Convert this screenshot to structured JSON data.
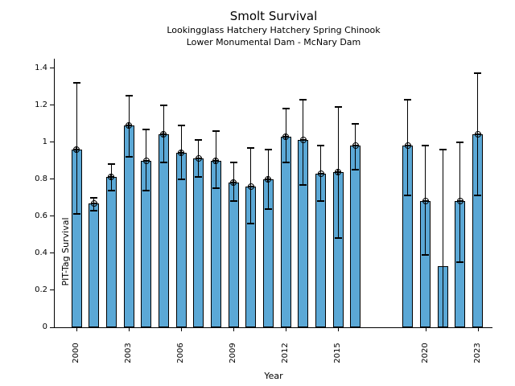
{
  "chart_data": {
    "type": "bar",
    "title": "Smolt Survival",
    "subtitle_line1": "Lookingglass Hatchery Hatchery Spring Chinook",
    "subtitle_line2": "Lower Monumental Dam - McNary Dam",
    "xlabel": "Year",
    "ylabel": "PIT-Tag Survival",
    "bar_color": "#5BA8D6",
    "bar_edge_color": "#000000",
    "errorbar_color": "#000000",
    "grid": false,
    "legend": false,
    "xlim": [
      1998.75,
      2023.85
    ],
    "ylim": [
      0,
      1.45
    ],
    "x_ticks": [
      2000,
      2003,
      2006,
      2009,
      2012,
      2015,
      2020,
      2023
    ],
    "x_tick_labels": [
      "2000",
      "2003",
      "2006",
      "2009",
      "2012",
      "2015",
      "2020",
      "2023"
    ],
    "y_ticks": [
      0,
      0.2,
      0.4,
      0.6,
      0.8,
      1,
      1.2,
      1.4
    ],
    "y_tick_labels": [
      "0",
      "0.2",
      "0.4",
      "0.6",
      "0.8",
      "1",
      "1.2",
      "1.4"
    ],
    "missing_years": [
      2017,
      2018
    ],
    "points": [
      {
        "year": 2000,
        "value": 0.96,
        "err_lo": 0.61,
        "err_hi": 1.32,
        "marker": true
      },
      {
        "year": 2001,
        "value": 0.67,
        "err_lo": 0.63,
        "err_hi": 0.7,
        "marker": true
      },
      {
        "year": 2002,
        "value": 0.81,
        "err_lo": 0.74,
        "err_hi": 0.88,
        "marker": true
      },
      {
        "year": 2003,
        "value": 1.09,
        "err_lo": 0.92,
        "err_hi": 1.25,
        "marker": true
      },
      {
        "year": 2004,
        "value": 0.9,
        "err_lo": 0.74,
        "err_hi": 1.07,
        "marker": true
      },
      {
        "year": 2005,
        "value": 1.04,
        "err_lo": 0.89,
        "err_hi": 1.2,
        "marker": true
      },
      {
        "year": 2006,
        "value": 0.94,
        "err_lo": 0.8,
        "err_hi": 1.09,
        "marker": true
      },
      {
        "year": 2007,
        "value": 0.91,
        "err_lo": 0.81,
        "err_hi": 1.01,
        "marker": true
      },
      {
        "year": 2008,
        "value": 0.9,
        "err_lo": 0.75,
        "err_hi": 1.06,
        "marker": true
      },
      {
        "year": 2009,
        "value": 0.78,
        "err_lo": 0.68,
        "err_hi": 0.89,
        "marker": true
      },
      {
        "year": 2010,
        "value": 0.76,
        "err_lo": 0.56,
        "err_hi": 0.97,
        "marker": true
      },
      {
        "year": 2011,
        "value": 0.8,
        "err_lo": 0.64,
        "err_hi": 0.96,
        "marker": true
      },
      {
        "year": 2012,
        "value": 1.03,
        "err_lo": 0.89,
        "err_hi": 1.18,
        "marker": true
      },
      {
        "year": 2013,
        "value": 1.01,
        "err_lo": 0.77,
        "err_hi": 1.23,
        "marker": true
      },
      {
        "year": 2014,
        "value": 0.83,
        "err_lo": 0.68,
        "err_hi": 0.98,
        "marker": true
      },
      {
        "year": 2015,
        "value": 0.84,
        "err_lo": 0.48,
        "err_hi": 1.19,
        "marker": true
      },
      {
        "year": 2016,
        "value": 0.98,
        "err_lo": 0.85,
        "err_hi": 1.1,
        "marker": true
      },
      {
        "year": 2019,
        "value": 0.98,
        "err_lo": 0.71,
        "err_hi": 1.23,
        "marker": true
      },
      {
        "year": 2020,
        "value": 0.68,
        "err_lo": 0.39,
        "err_hi": 0.98,
        "marker": true
      },
      {
        "year": 2021,
        "value": 0.33,
        "err_lo": 0.0,
        "err_hi": 0.96,
        "marker": false
      },
      {
        "year": 2022,
        "value": 0.68,
        "err_lo": 0.35,
        "err_hi": 1.0,
        "marker": true
      },
      {
        "year": 2023,
        "value": 1.04,
        "err_lo": 0.71,
        "err_hi": 1.37,
        "marker": true
      }
    ]
  }
}
